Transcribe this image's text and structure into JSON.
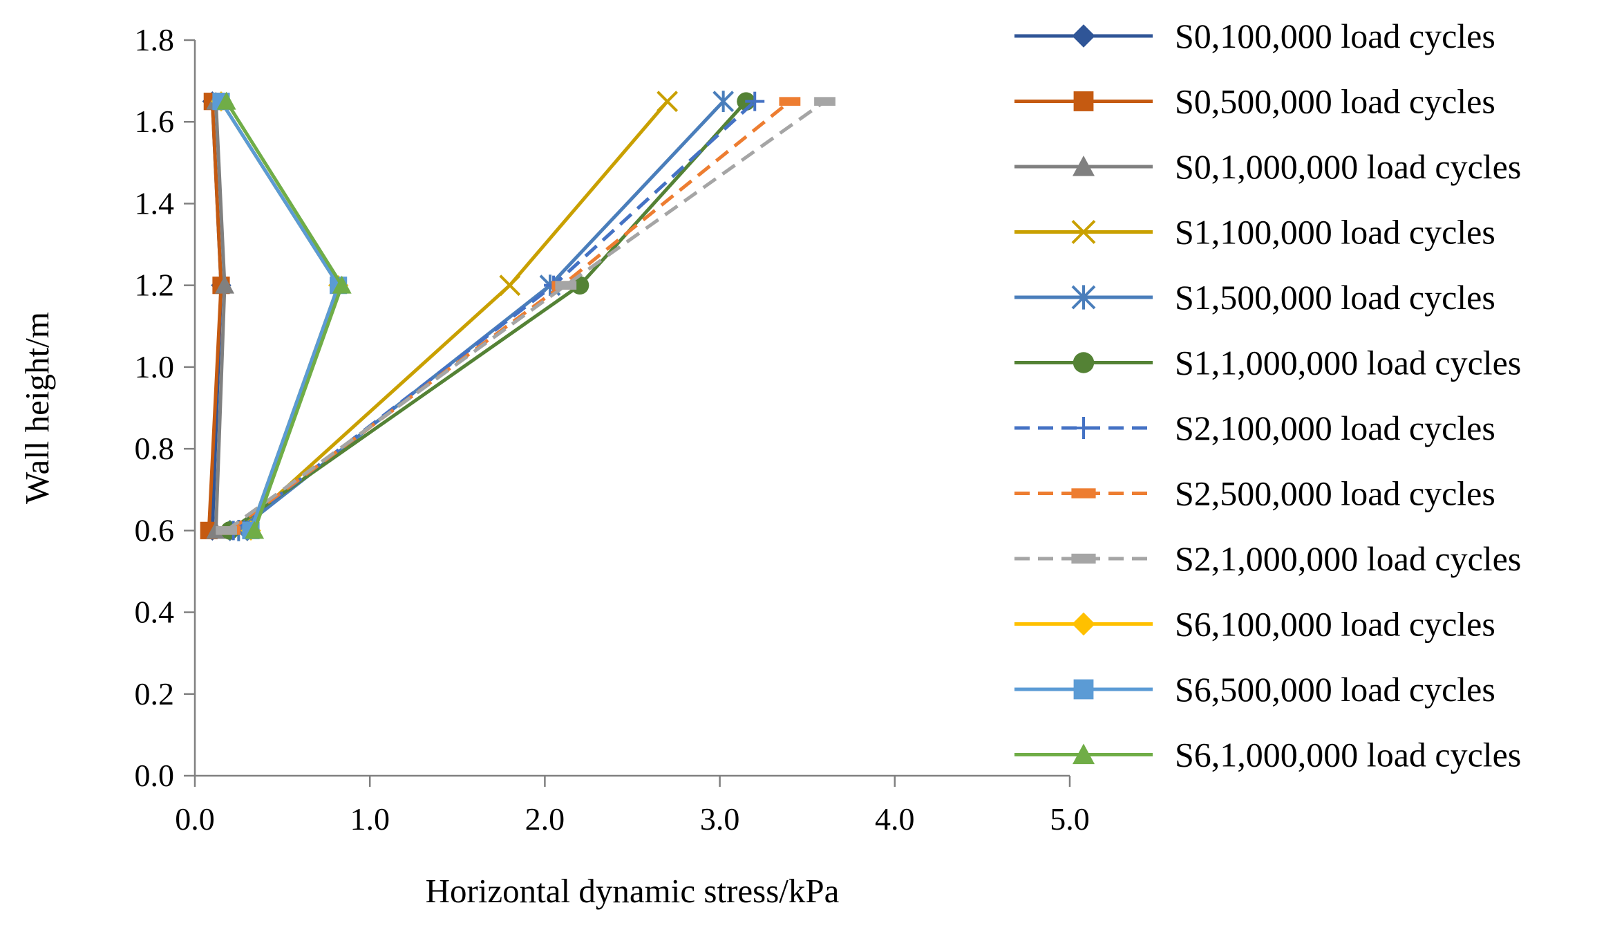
{
  "chart_data": {
    "type": "line",
    "title": "",
    "xlabel": "Horizontal dynamic stress/kPa",
    "ylabel": "Wall height/m",
    "xlim": [
      0,
      5
    ],
    "ylim": [
      0,
      1.8
    ],
    "x_ticks": [
      "0.0",
      "1.0",
      "2.0",
      "3.0",
      "4.0",
      "5.0"
    ],
    "y_ticks": [
      "0.0",
      "0.2",
      "0.4",
      "0.6",
      "0.8",
      "1.0",
      "1.2",
      "1.4",
      "1.6",
      "1.8"
    ],
    "grid": false,
    "legend_position": "right",
    "series": [
      {
        "name": "S0,100,000 load cycles",
        "color": "#2F5597",
        "dash": "solid",
        "marker": "diamond",
        "points": [
          [
            0.1,
            0.6
          ],
          [
            0.15,
            1.2
          ],
          [
            0.1,
            1.65
          ]
        ]
      },
      {
        "name": "S0,500,000 load cycles",
        "color": "#C55A11",
        "dash": "solid",
        "marker": "square",
        "points": [
          [
            0.08,
            0.6
          ],
          [
            0.15,
            1.2
          ],
          [
            0.1,
            1.65
          ]
        ]
      },
      {
        "name": "S0,1,000,000 load cycles",
        "color": "#808080",
        "dash": "solid",
        "marker": "triangle",
        "points": [
          [
            0.12,
            0.6
          ],
          [
            0.17,
            1.2
          ],
          [
            0.12,
            1.65
          ]
        ]
      },
      {
        "name": "S1,100,000 load cycles",
        "color": "#C9A000",
        "dash": "solid",
        "marker": "x",
        "points": [
          [
            0.25,
            0.6
          ],
          [
            1.8,
            1.2
          ],
          [
            2.7,
            1.65
          ]
        ]
      },
      {
        "name": "S1,500,000 load cycles",
        "color": "#4A7EBB",
        "dash": "solid",
        "marker": "star",
        "points": [
          [
            0.25,
            0.6
          ],
          [
            2.03,
            1.2
          ],
          [
            3.02,
            1.65
          ]
        ]
      },
      {
        "name": "S1,1,000,000 load cycles",
        "color": "#548235",
        "dash": "solid",
        "marker": "circle",
        "points": [
          [
            0.2,
            0.6
          ],
          [
            2.2,
            1.2
          ],
          [
            3.15,
            1.65
          ]
        ]
      },
      {
        "name": "S2,100,000 load cycles",
        "color": "#4472C4",
        "dash": "dash",
        "marker": "plus",
        "points": [
          [
            0.22,
            0.6
          ],
          [
            2.05,
            1.2
          ],
          [
            3.2,
            1.65
          ]
        ]
      },
      {
        "name": "S2,500,000 load cycles",
        "color": "#ED7D31",
        "dash": "dash",
        "marker": "dash",
        "points": [
          [
            0.2,
            0.6
          ],
          [
            2.1,
            1.2
          ],
          [
            3.4,
            1.65
          ]
        ]
      },
      {
        "name": "S2,1,000,000 load cycles",
        "color": "#A5A5A5",
        "dash": "dash",
        "marker": "dash",
        "points": [
          [
            0.18,
            0.6
          ],
          [
            2.12,
            1.2
          ],
          [
            3.6,
            1.65
          ]
        ]
      },
      {
        "name": "S6,100,000 load cycles",
        "color": "#FFC000",
        "dash": "solid",
        "marker": "diamond",
        "points": [
          [
            0.32,
            0.6
          ],
          [
            0.82,
            1.2
          ],
          [
            0.15,
            1.65
          ]
        ]
      },
      {
        "name": "S6,500,000 load cycles",
        "color": "#5B9BD5",
        "dash": "solid",
        "marker": "square",
        "points": [
          [
            0.32,
            0.6
          ],
          [
            0.82,
            1.2
          ],
          [
            0.15,
            1.65
          ]
        ]
      },
      {
        "name": "S6,1,000,000 load cycles",
        "color": "#70AD47",
        "dash": "solid",
        "marker": "triangle",
        "points": [
          [
            0.34,
            0.6
          ],
          [
            0.84,
            1.2
          ],
          [
            0.18,
            1.65
          ]
        ]
      }
    ]
  }
}
